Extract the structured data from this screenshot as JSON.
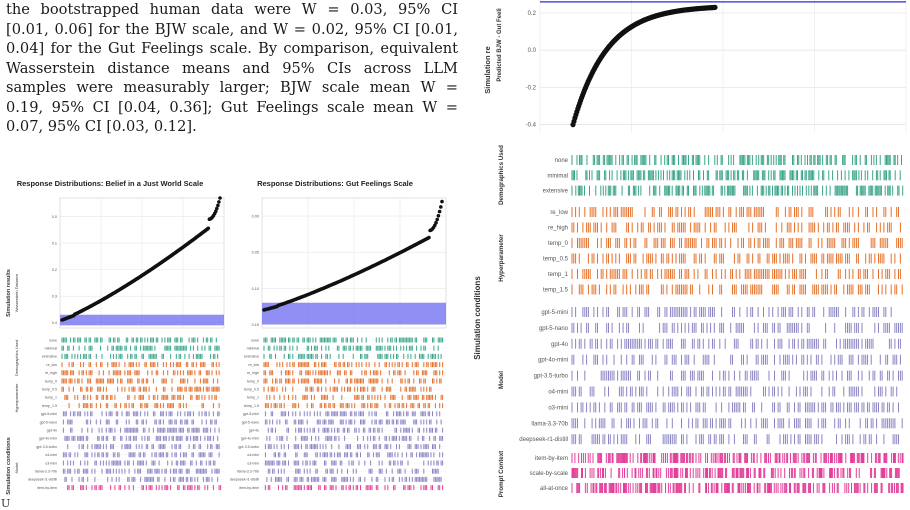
{
  "paragraph_lines": [
    "the bootstrapped human data were W = 0.03, 95% CI",
    "[0.01, 0.06] for the BJW scale, and W = 0.02, 95% CI [0.01,",
    "0.04] for the Gut Feelings scale. By comparison, equivalent",
    "Wasserstein distance means and 95% CIs across LLM",
    "samples were measurably larger; BJW scale mean W =",
    "0.19, 95% CI [0.04, 0.36]; Gut Feelings scale mean W =",
    "0.07, 95% CI [0.03, 0.12]."
  ],
  "page_marker": "U",
  "left_figure": {
    "panel_a_title": "Response Distributions: Belief in a Just World Scale",
    "panel_b_title": "Response Distributions: Gut Feelings Scale",
    "y_section_results": "Simulation results",
    "y_axis_results": "Wasserstein Distance",
    "y_section_conditions": "Simulation conditions",
    "group_labels": [
      "Demographics Used",
      "Hyperparameter",
      "Model"
    ],
    "panel_a_ticks": [
      "0.4",
      "0.3",
      "0.2",
      "0.1",
      "0.0"
    ],
    "panel_b_ticks": [
      "0.15",
      "0.10",
      "0.05",
      "0.00"
    ],
    "rows": [
      "none",
      "minimal",
      "extensive",
      "re_low",
      "re_high",
      "temp_0",
      "temp_0.5",
      "temp_1",
      "temp_1.5",
      "gpt-5-mini",
      "gpt-5-nano",
      "gpt-4o",
      "gpt-4o-mini",
      "gpt-3.5-turbo",
      "o4-mini",
      "o3-mini",
      "llama-3.3-70b",
      "deepseek-r1-distill",
      "item-by-item"
    ]
  },
  "right_figure": {
    "y_section_results": "Simulation re",
    "y_axis_results": "Predicted BJW - Gut Feeli",
    "y_ticks": [
      "0.2",
      "0.0",
      "-0.2",
      "-0.4"
    ],
    "y_section_conditions": "Simulation conditions",
    "groups": [
      {
        "label": "Demographics Used",
        "rows": [
          "none",
          "minimal",
          "extensive"
        ]
      },
      {
        "label": "Hyperparameter",
        "rows": [
          "re_low",
          "re_high",
          "temp_0",
          "temp_0.5",
          "temp_1",
          "temp_1.5"
        ]
      },
      {
        "label": "Model",
        "rows": [
          "gpt-5-mini",
          "gpt-5-nano",
          "gpt-4o",
          "gpt-4o-mini",
          "gpt-3.5-turbo",
          "o4-mini",
          "o3-mini",
          "llama-3.3-70b",
          "deepseek-r1-distill"
        ]
      },
      {
        "label": "Prompt Context",
        "rows": [
          "item-by-item",
          "scale-by-scale",
          "all-at-once"
        ]
      }
    ]
  },
  "colors": {
    "demographics": "#3aa58a",
    "hyperparameter": "#e5712c",
    "model": "#8a85c4",
    "prompt": "#e33f9a",
    "band": "#6a6af0",
    "reference_line": "#2a2ad8",
    "grid": "#e4e4e4"
  },
  "chart_data": [
    {
      "type": "scatter",
      "title": "Response Distributions: Belief in a Just World Scale",
      "ylabel": "Wasserstein Distance",
      "ylim": [
        -0.02,
        0.47
      ],
      "ticks": [
        0.0,
        0.1,
        0.2,
        0.3,
        0.4
      ],
      "band": [
        -0.01,
        0.03
      ],
      "shape": {
        "n": 150,
        "start": 0.01,
        "end": 0.39,
        "tail": 0.47
      }
    },
    {
      "type": "scatter",
      "title": "Response Distributions: Gut Feelings Scale",
      "ylim": [
        -0.005,
        0.175
      ],
      "ticks": [
        0.0,
        0.05,
        0.1,
        0.15
      ],
      "band": [
        0.0,
        0.03
      ],
      "shape": {
        "n": 150,
        "start": 0.02,
        "end": 0.13,
        "tail": 0.17
      }
    },
    {
      "type": "scatter",
      "ylabel": "Predicted BJW - Gut Feeli",
      "ylim": [
        -0.44,
        0.27
      ],
      "ticks": [
        -0.4,
        -0.2,
        0.0,
        0.2
      ],
      "reference_line": 0.26,
      "shape": {
        "n": 150,
        "start": -0.4,
        "end": 0.23
      }
    }
  ]
}
